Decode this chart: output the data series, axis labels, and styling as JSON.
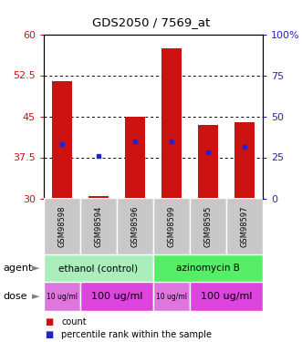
{
  "title": "GDS2050 / 7569_at",
  "samples": [
    "GSM98598",
    "GSM98594",
    "GSM98596",
    "GSM98599",
    "GSM98595",
    "GSM98597"
  ],
  "bar_bottoms": [
    30,
    30,
    30,
    30,
    30,
    30
  ],
  "bar_tops": [
    51.5,
    30.5,
    45.0,
    57.5,
    43.5,
    44.0
  ],
  "blue_dot_y": [
    40.0,
    37.7,
    40.5,
    40.5,
    38.5,
    39.5
  ],
  "ylim": [
    30,
    60
  ],
  "yticks_left": [
    30,
    37.5,
    45,
    52.5,
    60
  ],
  "yticks_right": [
    0,
    25,
    50,
    75,
    100
  ],
  "bar_color": "#cc1111",
  "dot_color": "#2222cc",
  "agent_groups": [
    {
      "label": "ethanol (control)",
      "start": 0,
      "end": 3,
      "color": "#aaeebb"
    },
    {
      "label": "azinomycin B",
      "start": 3,
      "end": 6,
      "color": "#55ee66"
    }
  ],
  "dose_groups": [
    {
      "label": "10 ug/ml",
      "start": 0,
      "end": 1,
      "color": "#dd77dd",
      "fontsize": 5.5
    },
    {
      "label": "100 ug/ml",
      "start": 1,
      "end": 3,
      "color": "#dd44dd",
      "fontsize": 8
    },
    {
      "label": "10 ug/ml",
      "start": 3,
      "end": 4,
      "color": "#dd77dd",
      "fontsize": 5.5
    },
    {
      "label": "100 ug/ml",
      "start": 4,
      "end": 6,
      "color": "#dd44dd",
      "fontsize": 8
    }
  ],
  "legend_count_color": "#cc1111",
  "legend_dot_color": "#2222cc",
  "left_label_color": "#cc1111",
  "right_label_color": "#2222cc"
}
